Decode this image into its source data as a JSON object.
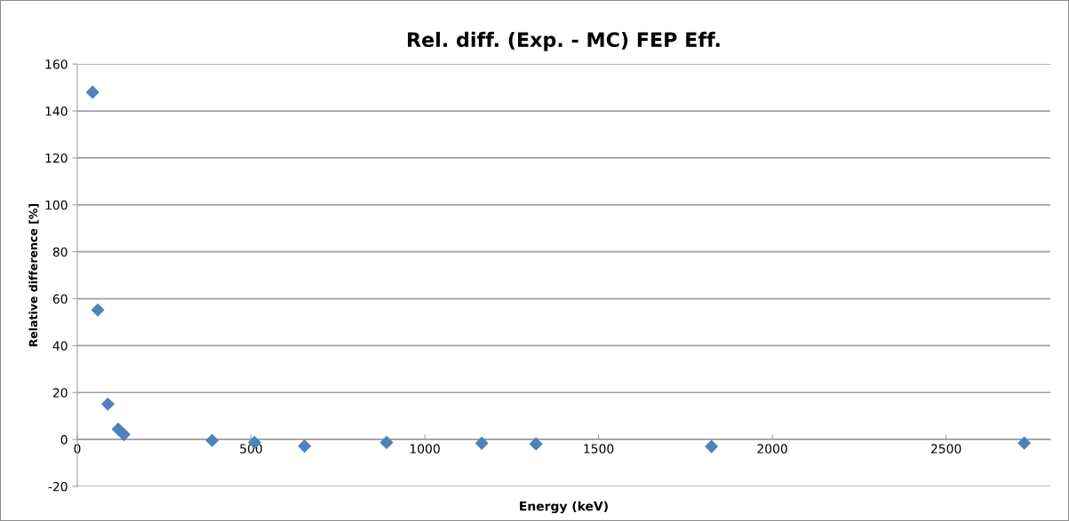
{
  "chart_data": {
    "type": "scatter",
    "title": "Rel. diff. (Exp. - MC) FEP Eff.",
    "xlabel": "Energy (keV)",
    "ylabel": "Relative difference [%]",
    "x": [
      44,
      59,
      88,
      118,
      134,
      388,
      510,
      654,
      890,
      1164,
      1320,
      1825,
      2725
    ],
    "series": [
      {
        "color": "#4f81bd",
        "values": [
          148,
          55.2,
          15.1,
          4.4,
          2.1,
          -0.4,
          -1.3,
          -2.8,
          -1.3,
          -1.6,
          -1.9,
          -3.0,
          -1.5
        ]
      }
    ],
    "xlim": [
      0,
      2800
    ],
    "xticks": [
      0,
      500,
      1000,
      1500,
      2000,
      2500
    ],
    "ylim": [
      -20,
      160
    ],
    "yticks": [
      -20,
      0,
      20,
      40,
      60,
      80,
      100,
      120,
      140,
      160
    ],
    "grid": "y",
    "marker": "diamond",
    "legend": false
  }
}
